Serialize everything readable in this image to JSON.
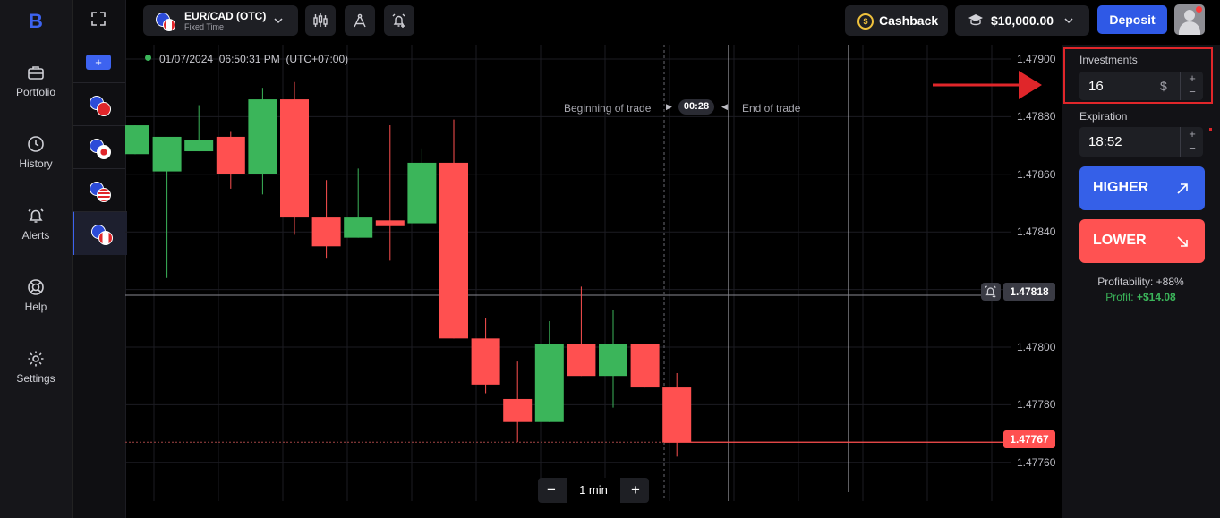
{
  "nav": {
    "items": [
      {
        "label": "Portfolio",
        "icon": "briefcase-icon"
      },
      {
        "label": "History",
        "icon": "history-icon"
      },
      {
        "label": "Alerts",
        "icon": "bell-icon"
      },
      {
        "label": "Help",
        "icon": "lifebuoy-icon"
      },
      {
        "label": "Settings",
        "icon": "gear-icon"
      }
    ]
  },
  "assets": {
    "add_label": "+",
    "items": [
      "EUR/CHF",
      "EUR/JPY",
      "EUR/USD",
      "EUR/CAD"
    ]
  },
  "pair": {
    "name": "EUR/CAD (OTC)",
    "mode": "Fixed Time"
  },
  "topbar": {
    "cashback_label": "Cashback",
    "balance": "$10,000.00",
    "deposit_label": "Deposit"
  },
  "chart": {
    "timestamp": "01/07/2024  06:50:31 PM  (UTC+07:00)",
    "beginning_label": "Beginning of trade",
    "timer": "00:28",
    "end_label": "End of trade",
    "price_ticks": [
      "1.47900",
      "1.47880",
      "1.47860",
      "1.47840",
      "1.47800",
      "1.47780",
      "1.47760"
    ],
    "current_price": "1.47818",
    "last_price": "1.47767",
    "timeframe": "1 min",
    "minus_label": "−",
    "plus_label": "+"
  },
  "trade": {
    "investments_label": "Investments",
    "investment_value": "16",
    "currency_symbol": "$",
    "expiration_label": "Expiration",
    "expiration_value": "18:52",
    "higher_label": "HIGHER",
    "lower_label": "LOWER",
    "profitability": "Profitability: +88%",
    "profit_label": "Profit:",
    "profit_value": "+$14.08"
  },
  "colors": {
    "up": "#3bb55a",
    "down": "#ff5050",
    "accent": "#3d63f0",
    "annotation": "#e0262a"
  },
  "candles": [
    {
      "o": 1.47867,
      "c": 1.47877,
      "h": 1.47877,
      "l": 1.47867
    },
    {
      "o": 1.47861,
      "c": 1.47873,
      "h": 1.47873,
      "l": 1.47824
    },
    {
      "o": 1.47868,
      "c": 1.47872,
      "h": 1.47884,
      "l": 1.47868
    },
    {
      "o": 1.47873,
      "c": 1.4786,
      "h": 1.47875,
      "l": 1.47855
    },
    {
      "o": 1.4786,
      "c": 1.47886,
      "h": 1.4789,
      "l": 1.47853
    },
    {
      "o": 1.47886,
      "c": 1.47845,
      "h": 1.47892,
      "l": 1.47839
    },
    {
      "o": 1.47845,
      "c": 1.47835,
      "h": 1.47858,
      "l": 1.47831
    },
    {
      "o": 1.47838,
      "c": 1.47845,
      "h": 1.47862,
      "l": 1.47838
    },
    {
      "o": 1.47844,
      "c": 1.47842,
      "h": 1.47877,
      "l": 1.4783
    },
    {
      "o": 1.47843,
      "c": 1.47864,
      "h": 1.47869,
      "l": 1.47843
    },
    {
      "o": 1.47864,
      "c": 1.47803,
      "h": 1.47879,
      "l": 1.47803
    },
    {
      "o": 1.47803,
      "c": 1.47787,
      "h": 1.4781,
      "l": 1.47784
    },
    {
      "o": 1.47782,
      "c": 1.47774,
      "h": 1.47795,
      "l": 1.47767
    },
    {
      "o": 1.47774,
      "c": 1.47801,
      "h": 1.47809,
      "l": 1.47774
    },
    {
      "o": 1.47801,
      "c": 1.4779,
      "h": 1.47821,
      "l": 1.4779
    },
    {
      "o": 1.4779,
      "c": 1.47801,
      "h": 1.47813,
      "l": 1.47779
    },
    {
      "o": 1.47801,
      "c": 1.47786,
      "h": 1.47801,
      "l": 1.47786
    },
    {
      "o": 1.47786,
      "c": 1.47767,
      "h": 1.47791,
      "l": 1.47762
    }
  ]
}
